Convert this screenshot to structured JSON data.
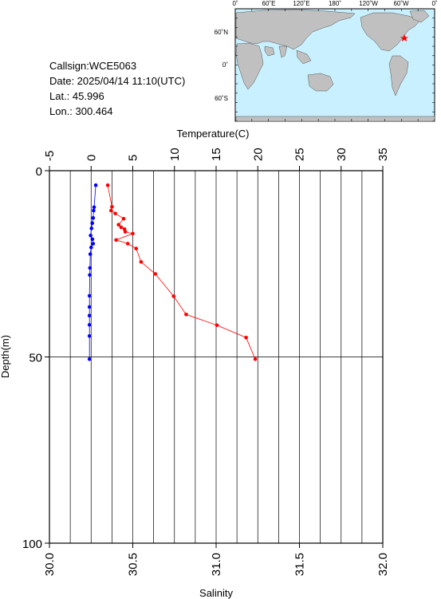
{
  "info": {
    "callsign": "Callsign:WCE5063",
    "date": "Date:  2025/04/14 11:10(UTC)",
    "lat": "Lat.:   45.996",
    "lon": "Lon.:  300.464"
  },
  "map": {
    "top_labels": [
      "0˚",
      "60˚E",
      "120˚E",
      "180˚",
      "120˚W",
      "60˚W",
      "0˚"
    ],
    "left_labels": [
      "60˚N",
      "0˚",
      "60˚S"
    ],
    "ocean_color": "#c8f0ff",
    "land_color": "#c0c0c0",
    "marker_color": "#ff0000"
  },
  "chart_data": {
    "type": "line",
    "top_axis": {
      "label": "Temperature(C)",
      "range": [
        -5,
        35
      ],
      "ticks": [
        "-5",
        "0",
        "5",
        "10",
        "15",
        "20",
        "25",
        "30",
        "35"
      ]
    },
    "bottom_axis": {
      "label": "Salinity",
      "range": [
        30.0,
        32.0
      ],
      "ticks": [
        "30.0",
        "30.5",
        "31.0",
        "31.5",
        "32.0"
      ]
    },
    "y_axis": {
      "label": "Depth(m)",
      "range": [
        0,
        100
      ],
      "inverted": true,
      "ticks": [
        "0",
        "50",
        "100"
      ]
    },
    "grid": true,
    "series": [
      {
        "axis": "bottom",
        "color": "#0000ff",
        "points": [
          [
            30.278,
            3.9
          ],
          [
            30.268,
            9.8
          ],
          [
            30.265,
            10.7
          ],
          [
            30.262,
            12.7
          ],
          [
            30.257,
            14.1
          ],
          [
            30.252,
            15.5
          ],
          [
            30.247,
            17.4
          ],
          [
            30.258,
            18.4
          ],
          [
            30.262,
            19.6
          ],
          [
            30.25,
            20.6
          ],
          [
            30.245,
            22.4
          ],
          [
            30.243,
            26.1
          ],
          [
            30.242,
            28.0
          ],
          [
            30.24,
            33.6
          ],
          [
            30.24,
            36.6
          ],
          [
            30.24,
            38.9
          ],
          [
            30.24,
            41.4
          ],
          [
            30.24,
            44.4
          ],
          [
            30.24,
            50.6
          ]
        ]
      },
      {
        "axis": "top",
        "color": "#ff0000",
        "points": [
          [
            2.0,
            3.9
          ],
          [
            2.5,
            9.7
          ],
          [
            2.4,
            10.7
          ],
          [
            2.9,
            11.5
          ],
          [
            3.9,
            12.9
          ],
          [
            3.3,
            14.5
          ],
          [
            3.6,
            15.2
          ],
          [
            4.0,
            15.7
          ],
          [
            4.1,
            16.4
          ],
          [
            5.0,
            16.9
          ],
          [
            3.0,
            18.6
          ],
          [
            4.4,
            19.6
          ],
          [
            5.4,
            20.9
          ],
          [
            6.0,
            24.5
          ],
          [
            7.7,
            27.7
          ],
          [
            9.9,
            33.7
          ],
          [
            11.4,
            38.6
          ],
          [
            15.1,
            41.5
          ],
          [
            18.6,
            44.8
          ],
          [
            19.7,
            50.6
          ]
        ]
      }
    ]
  }
}
